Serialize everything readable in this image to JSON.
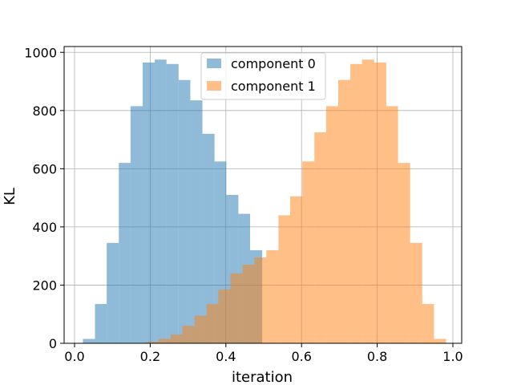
{
  "chart_data": {
    "type": "bar",
    "xlabel": "iteration",
    "ylabel": "KL",
    "xlim": [
      -0.0,
      1.0
    ],
    "ylim": [
      0,
      1020
    ],
    "xticks": [
      0.0,
      0.2,
      0.4,
      0.6,
      0.8,
      1.0
    ],
    "xtick_labels": [
      "0.0",
      "0.2",
      "0.4",
      "0.6",
      "0.8",
      "1.0"
    ],
    "yticks": [
      0,
      200,
      400,
      600,
      800,
      1000
    ],
    "ytick_labels": [
      "0",
      "200",
      "400",
      "600",
      "800",
      "1000"
    ],
    "grid": true,
    "legend_position": "top-center",
    "series": [
      {
        "name": "component 0",
        "color": "#1f77b4",
        "opacity": 0.5,
        "bins": [
          {
            "x0": 0.022,
            "x1": 0.054,
            "y": 15
          },
          {
            "x0": 0.054,
            "x1": 0.085,
            "y": 135
          },
          {
            "x0": 0.085,
            "x1": 0.117,
            "y": 345
          },
          {
            "x0": 0.117,
            "x1": 0.148,
            "y": 620
          },
          {
            "x0": 0.148,
            "x1": 0.18,
            "y": 815
          },
          {
            "x0": 0.18,
            "x1": 0.212,
            "y": 965
          },
          {
            "x0": 0.212,
            "x1": 0.243,
            "y": 975
          },
          {
            "x0": 0.243,
            "x1": 0.275,
            "y": 960
          },
          {
            "x0": 0.275,
            "x1": 0.306,
            "y": 905
          },
          {
            "x0": 0.306,
            "x1": 0.338,
            "y": 835
          },
          {
            "x0": 0.338,
            "x1": 0.37,
            "y": 720
          },
          {
            "x0": 0.37,
            "x1": 0.401,
            "y": 625
          },
          {
            "x0": 0.401,
            "x1": 0.433,
            "y": 510
          },
          {
            "x0": 0.433,
            "x1": 0.464,
            "y": 445
          },
          {
            "x0": 0.464,
            "x1": 0.496,
            "y": 320
          }
        ]
      },
      {
        "name": "component 1",
        "color": "#ff7f0e",
        "opacity": 0.5,
        "bins": [
          {
            "x0": 0.19,
            "x1": 0.222,
            "y": 5
          },
          {
            "x0": 0.222,
            "x1": 0.254,
            "y": 15
          },
          {
            "x0": 0.254,
            "x1": 0.285,
            "y": 30
          },
          {
            "x0": 0.285,
            "x1": 0.317,
            "y": 60
          },
          {
            "x0": 0.317,
            "x1": 0.349,
            "y": 95
          },
          {
            "x0": 0.349,
            "x1": 0.38,
            "y": 135
          },
          {
            "x0": 0.38,
            "x1": 0.412,
            "y": 185
          },
          {
            "x0": 0.412,
            "x1": 0.444,
            "y": 240
          },
          {
            "x0": 0.444,
            "x1": 0.475,
            "y": 270
          },
          {
            "x0": 0.475,
            "x1": 0.507,
            "y": 295
          },
          {
            "x0": 0.507,
            "x1": 0.539,
            "y": 320
          },
          {
            "x0": 0.539,
            "x1": 0.57,
            "y": 440
          },
          {
            "x0": 0.57,
            "x1": 0.602,
            "y": 505
          },
          {
            "x0": 0.602,
            "x1": 0.634,
            "y": 625
          },
          {
            "x0": 0.634,
            "x1": 0.665,
            "y": 725
          },
          {
            "x0": 0.665,
            "x1": 0.697,
            "y": 815
          },
          {
            "x0": 0.697,
            "x1": 0.729,
            "y": 905
          },
          {
            "x0": 0.729,
            "x1": 0.76,
            "y": 960
          },
          {
            "x0": 0.76,
            "x1": 0.792,
            "y": 975
          },
          {
            "x0": 0.792,
            "x1": 0.824,
            "y": 965
          },
          {
            "x0": 0.824,
            "x1": 0.855,
            "y": 815
          },
          {
            "x0": 0.855,
            "x1": 0.887,
            "y": 620
          },
          {
            "x0": 0.887,
            "x1": 0.919,
            "y": 345
          },
          {
            "x0": 0.919,
            "x1": 0.95,
            "y": 135
          },
          {
            "x0": 0.95,
            "x1": 0.982,
            "y": 15
          }
        ]
      }
    ]
  }
}
